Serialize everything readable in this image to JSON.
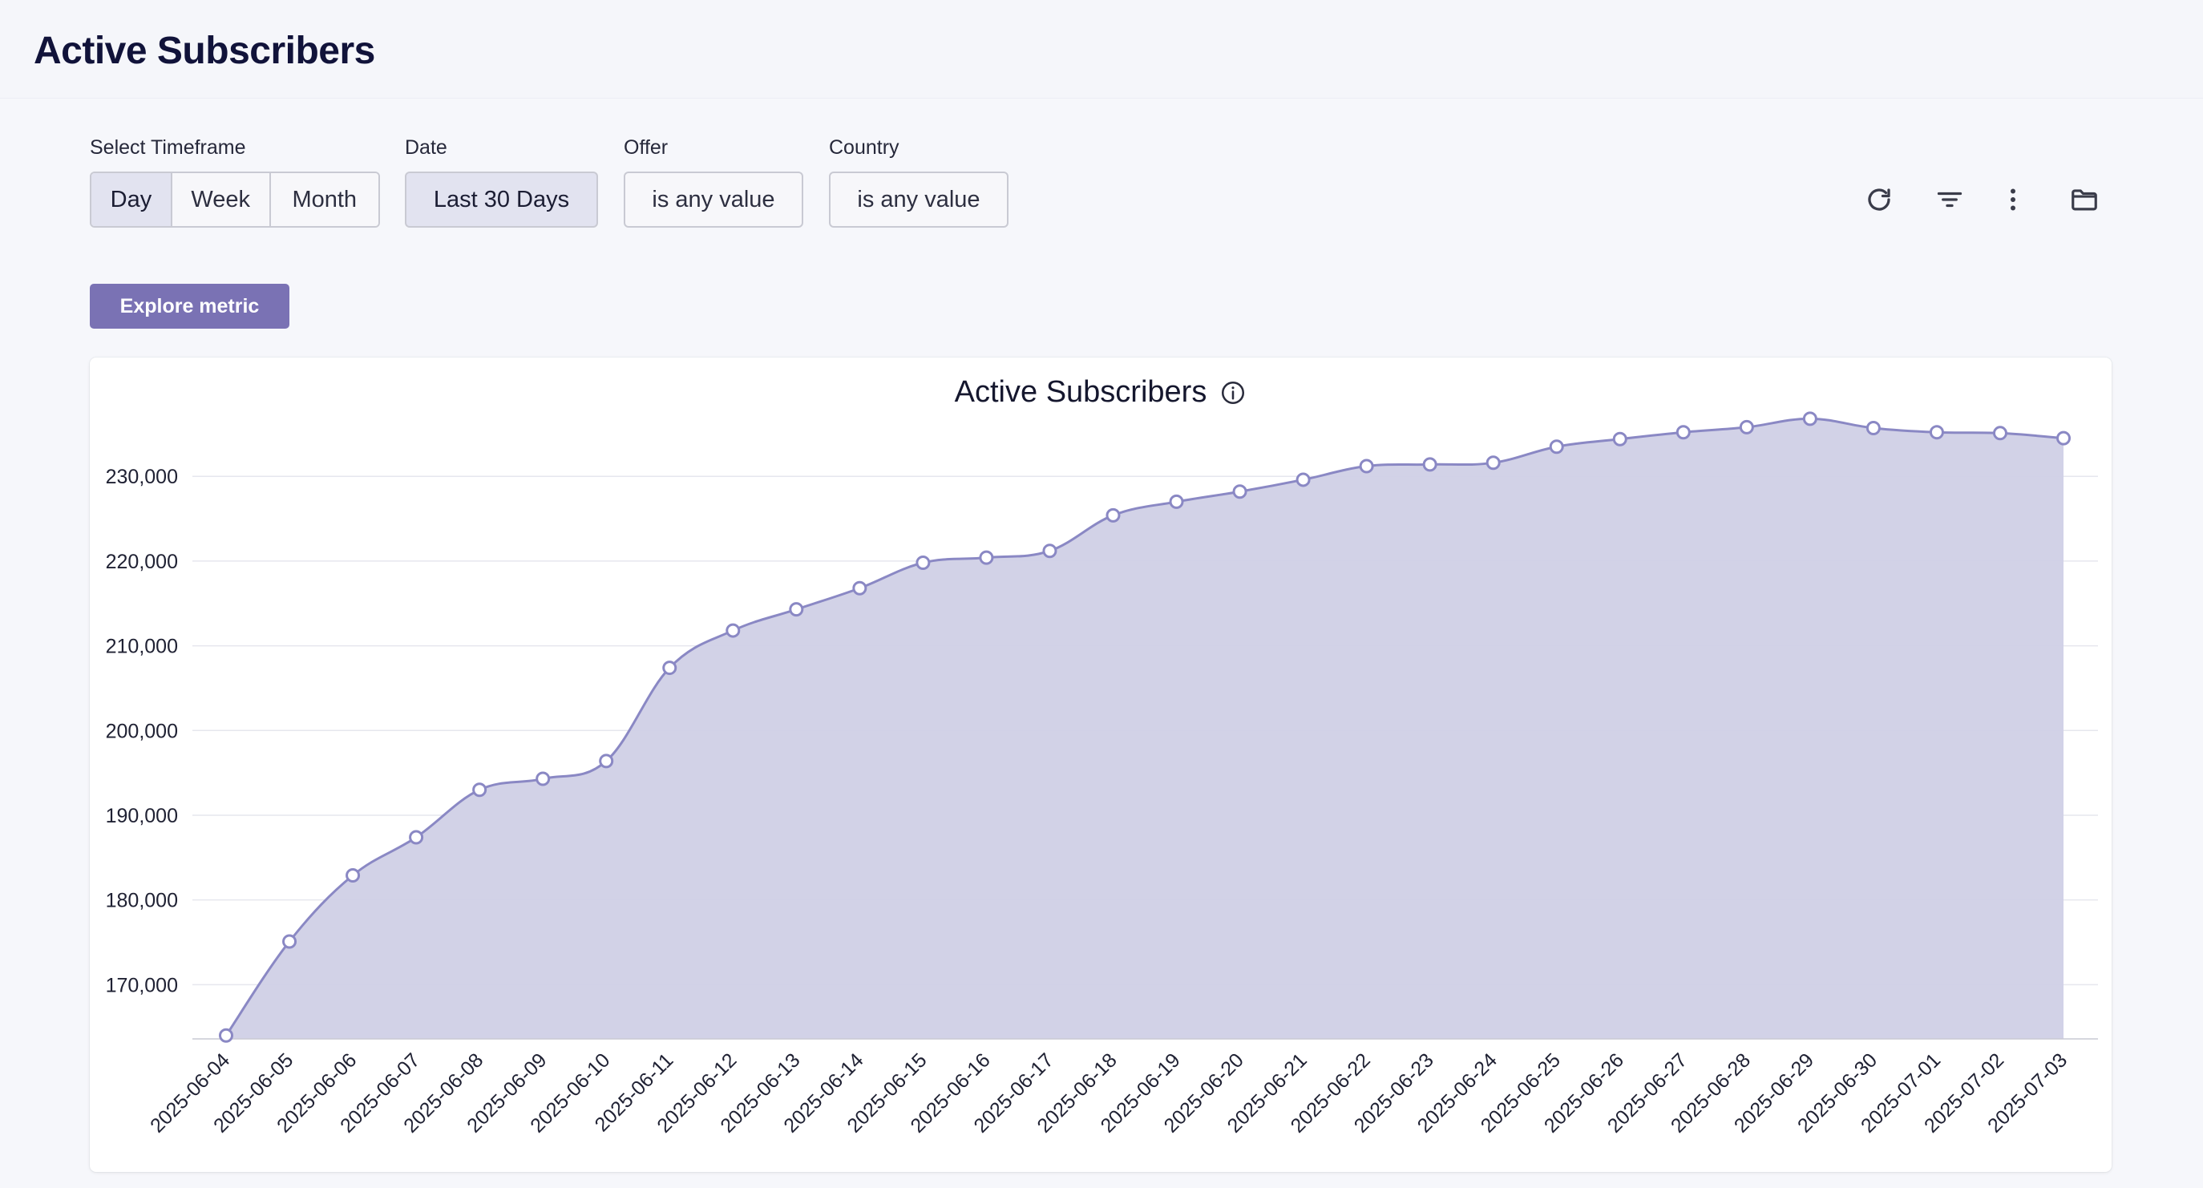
{
  "header": {
    "title": "Active Subscribers"
  },
  "filters": {
    "timeframe": {
      "label": "Select Timeframe",
      "options": [
        "Day",
        "Week",
        "Month"
      ],
      "selected": "Day"
    },
    "date": {
      "label": "Date",
      "value": "Last 30 Days"
    },
    "offer": {
      "label": "Offer",
      "value": "is any value"
    },
    "country": {
      "label": "Country",
      "value": "is any value"
    }
  },
  "toolbar": {
    "icons": [
      "refresh-icon",
      "filter-icon",
      "more-vertical-icon",
      "folder-icon"
    ]
  },
  "explore_button": {
    "label": "Explore metric"
  },
  "colors": {
    "accent": "#7a72b4",
    "area_fill": "#d0d0e6",
    "line": "#8a88c4"
  },
  "chart_data": {
    "type": "area",
    "title": "Active Subscribers",
    "xlabel": "",
    "ylabel": "",
    "ylim": [
      163600,
      237400
    ],
    "yticks": [
      170000,
      180000,
      190000,
      200000,
      210000,
      220000,
      230000
    ],
    "ytick_labels": [
      "170,000",
      "180,000",
      "190,000",
      "200,000",
      "210,000",
      "220,000",
      "230,000"
    ],
    "categories": [
      "2025-06-04",
      "2025-06-05",
      "2025-06-06",
      "2025-06-07",
      "2025-06-08",
      "2025-06-09",
      "2025-06-10",
      "2025-06-11",
      "2025-06-12",
      "2025-06-13",
      "2025-06-14",
      "2025-06-15",
      "2025-06-16",
      "2025-06-17",
      "2025-06-18",
      "2025-06-19",
      "2025-06-20",
      "2025-06-21",
      "2025-06-22",
      "2025-06-23",
      "2025-06-24",
      "2025-06-25",
      "2025-06-26",
      "2025-06-27",
      "2025-06-28",
      "2025-06-29",
      "2025-06-30",
      "2025-07-01",
      "2025-07-02",
      "2025-07-03"
    ],
    "series": [
      {
        "name": "Active Subscribers",
        "values": [
          164000,
          175100,
          182900,
          187400,
          193000,
          194300,
          196400,
          207400,
          211800,
          214300,
          216800,
          219800,
          220400,
          221200,
          225400,
          227000,
          228200,
          229600,
          231200,
          231400,
          231600,
          233500,
          234400,
          235200,
          235800,
          236800,
          235700,
          235200,
          235100,
          234500
        ]
      }
    ],
    "grid": true,
    "legend": "none"
  }
}
